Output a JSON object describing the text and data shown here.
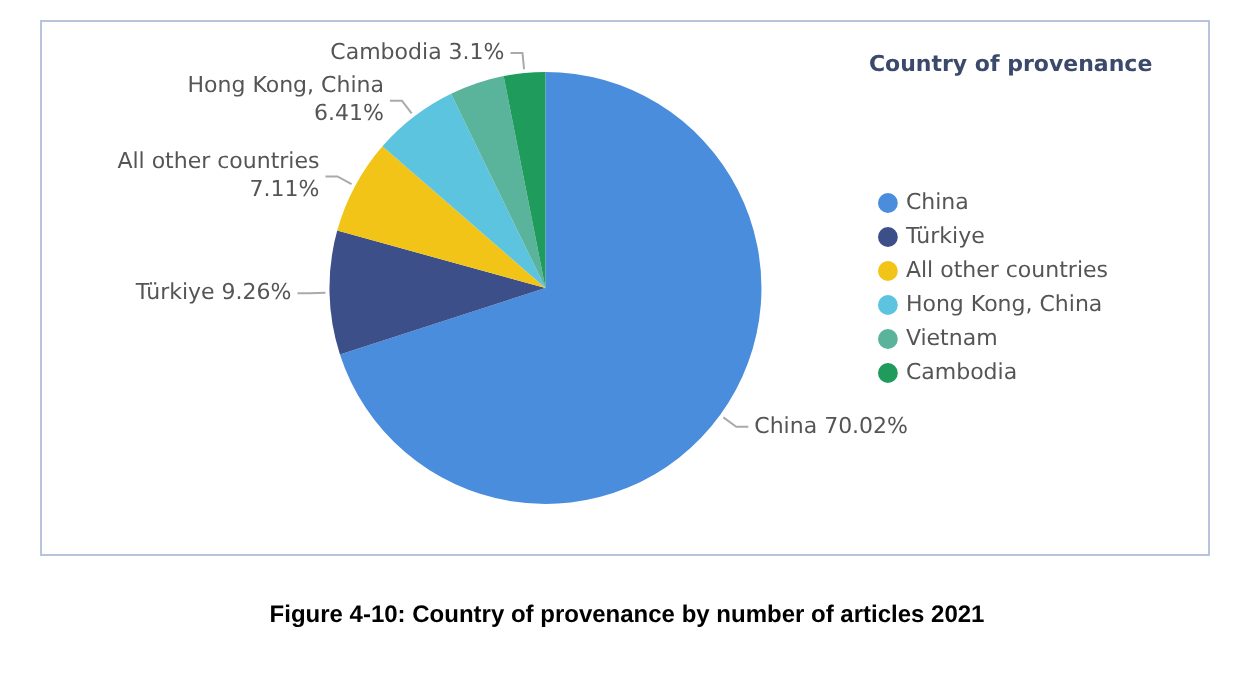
{
  "chart_data": {
    "type": "pie",
    "title": "Figure 4-10: Country of provenance by number of articles 2021",
    "legend_title": "Country of provenance",
    "legend": "right",
    "categories": [
      "China",
      "Türkiye",
      "All other countries",
      "Hong Kong, China",
      "Vietnam",
      "Cambodia"
    ],
    "values": [
      70.02,
      9.26,
      7.11,
      6.41,
      4.1,
      3.1
    ],
    "colors": [
      "#4a8ddc",
      "#3c4f88",
      "#f2c418",
      "#5dc4e0",
      "#5ab49c",
      "#1f9c5c"
    ],
    "value_labels": [
      "70.02%",
      "9.26%",
      "7.11%",
      "6.41%",
      null,
      "3.1%"
    ]
  }
}
